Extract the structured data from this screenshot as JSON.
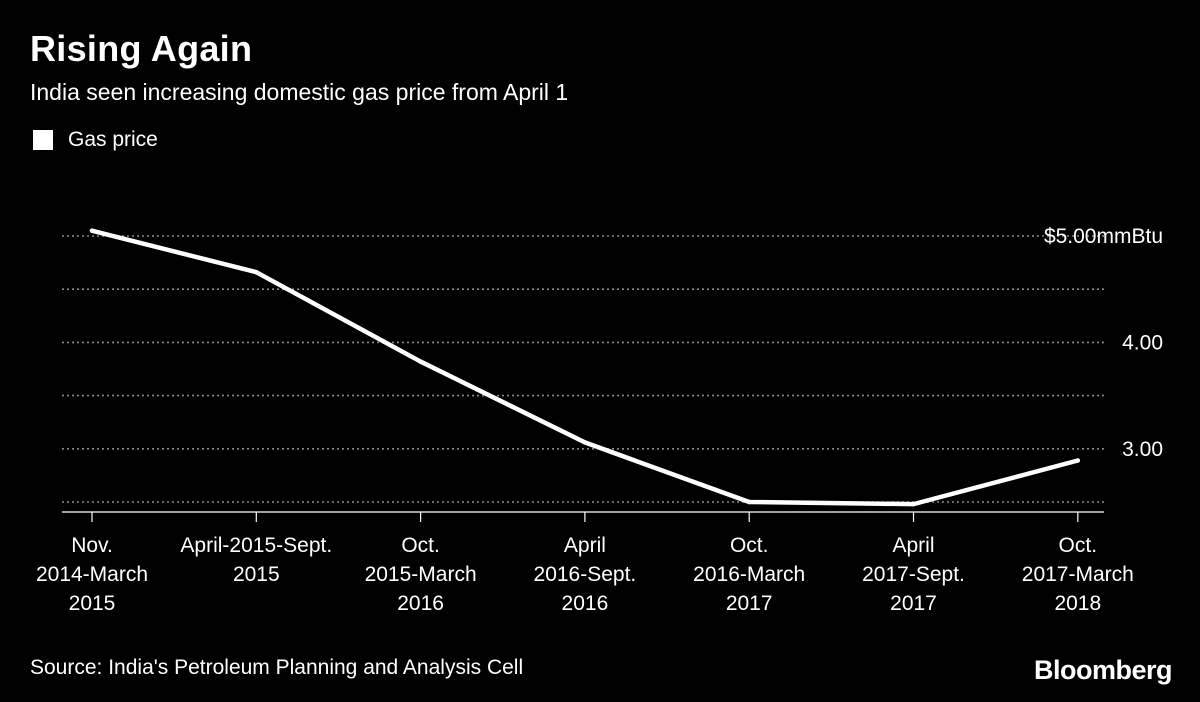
{
  "header": {
    "title": "Rising Again",
    "subtitle": "India seen increasing domestic gas price from April 1"
  },
  "legend": {
    "label": "Gas price"
  },
  "footer": {
    "source": "Source: India's Petroleum Planning and Analysis Cell",
    "logo": "Bloomberg"
  },
  "colors": {
    "background": "#000000",
    "line": "#ffffff",
    "grid": "#8a8a8a"
  },
  "chart_data": {
    "type": "line",
    "title": "Rising Again",
    "subtitle": "India seen increasing domestic gas price from April 1",
    "categories": [
      [
        "Nov.",
        "2014-March",
        "2015"
      ],
      [
        "April-2015-Sept.",
        "2015"
      ],
      [
        "Oct.",
        "2015-March",
        "2016"
      ],
      [
        "April",
        "2016-Sept.",
        "2016"
      ],
      [
        "Oct.",
        "2016-March",
        "2017"
      ],
      [
        "April",
        "2017-Sept.",
        "2017"
      ],
      [
        "Oct.",
        "2017-March",
        "2018"
      ]
    ],
    "series": [
      {
        "name": "Gas price",
        "values": [
          5.05,
          4.66,
          3.82,
          3.06,
          2.5,
          2.48,
          2.89
        ]
      }
    ],
    "ylim": [
      2.4,
      5.1
    ],
    "yticks": [
      {
        "value": 5.0,
        "label": "$5.00mmBtu"
      },
      {
        "value": 4.5,
        "label": ""
      },
      {
        "value": 4.0,
        "label": "4.00"
      },
      {
        "value": 3.5,
        "label": ""
      },
      {
        "value": 3.0,
        "label": "3.00"
      },
      {
        "value": 2.5,
        "label": ""
      }
    ],
    "grid": true,
    "grid_style": "dotted",
    "y_axis_side": "right",
    "legend_position": "top-left"
  }
}
